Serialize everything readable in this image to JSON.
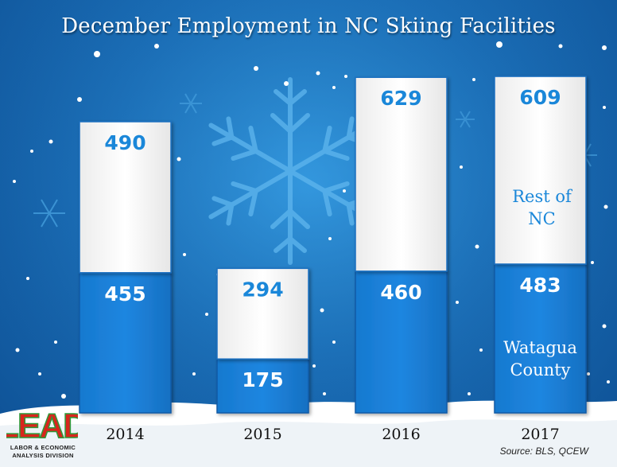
{
  "title": "December Employment in NC Skiing Facilities",
  "source": "Source: BLS, QCEW",
  "logo": {
    "letters": "LEAD",
    "line1": "LABOR & ECONOMIC",
    "line2": "ANALYSIS DIVISION"
  },
  "colors": {
    "background": "#1b6fb8",
    "bar_bottom": "#1f86e0",
    "bar_top": "#ffffff",
    "top_value_text": "#1a87d9",
    "logo_red": "#d8261d",
    "logo_green": "#2e9a3a"
  },
  "chart_data": {
    "type": "bar",
    "stacked": true,
    "title": "December Employment in NC Skiing Facilities",
    "xlabel": "",
    "ylabel": "",
    "categories": [
      "2014",
      "2015",
      "2016",
      "2017"
    ],
    "series": [
      {
        "name": "Watagua County",
        "label_lines": [
          "Watagua",
          "County"
        ],
        "values": [
          455,
          175,
          460,
          483
        ]
      },
      {
        "name": "Rest of NC",
        "label_lines": [
          "Rest of",
          "NC"
        ],
        "values": [
          490,
          294,
          629,
          609
        ]
      }
    ],
    "grid": false,
    "legend": "inline-in-last-bar"
  }
}
